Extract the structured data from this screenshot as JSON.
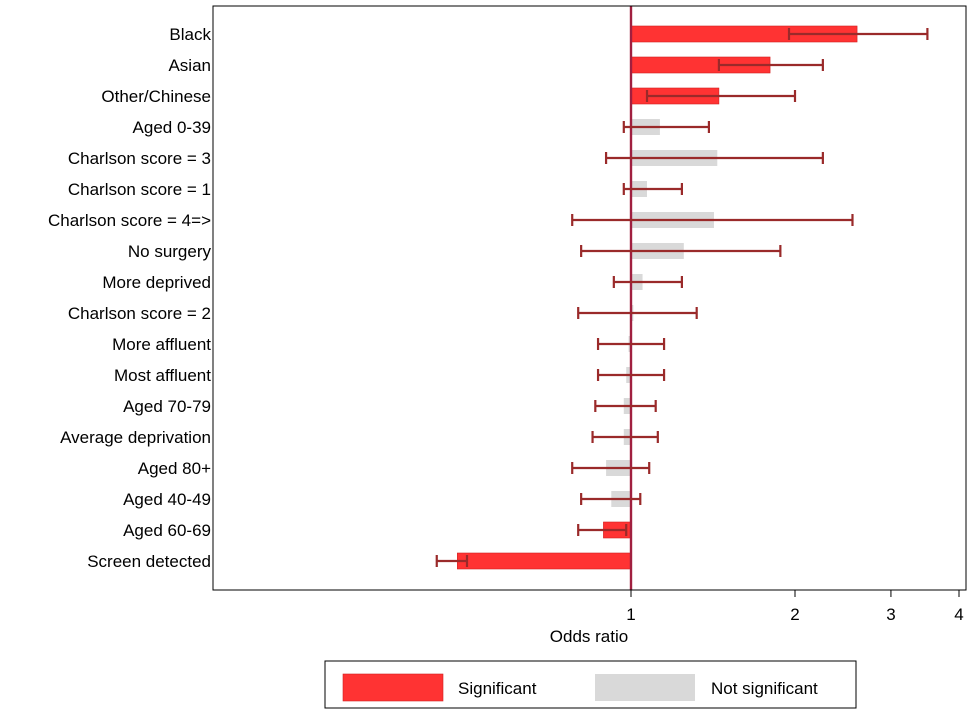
{
  "chart_data": {
    "type": "bar",
    "orientation": "horizontal",
    "xscale": "log",
    "reference_line": 1,
    "xlim": [
      0.44,
      4.2
    ],
    "xlabel": "Odds ratio",
    "xticks": [
      1,
      2,
      3,
      4
    ],
    "grid": false,
    "legend_position": "bottom",
    "colors": {
      "significant": "#ff3333",
      "not_significant": "#d9d9d9",
      "ci_line": "#9a2a2a",
      "ref_line": "#a01f3f"
    },
    "legend": [
      {
        "key": "significant",
        "label": "Significant"
      },
      {
        "key": "not_significant",
        "label": "Not significant"
      }
    ],
    "rows": [
      {
        "label": "Black",
        "or": 2.6,
        "lo": 1.95,
        "hi": 3.5,
        "significant": true
      },
      {
        "label": "Asian",
        "or": 1.8,
        "lo": 1.45,
        "hi": 2.25,
        "significant": true
      },
      {
        "label": "Other/Chinese",
        "or": 1.45,
        "lo": 1.07,
        "hi": 2.0,
        "significant": true
      },
      {
        "label": "Aged 0-39",
        "or": 1.13,
        "lo": 0.97,
        "hi": 1.39,
        "significant": false
      },
      {
        "label": "Charlson score = 3",
        "or": 1.44,
        "lo": 0.9,
        "hi": 2.25,
        "significant": false
      },
      {
        "label": "Charlson score = 1",
        "or": 1.07,
        "lo": 0.97,
        "hi": 1.24,
        "significant": false
      },
      {
        "label": "Charlson score = 4=>",
        "or": 1.42,
        "lo": 0.78,
        "hi": 2.55,
        "significant": false
      },
      {
        "label": "No surgery",
        "or": 1.25,
        "lo": 0.81,
        "hi": 1.88,
        "significant": false
      },
      {
        "label": "More deprived",
        "or": 1.05,
        "lo": 0.93,
        "hi": 1.24,
        "significant": false
      },
      {
        "label": "Charlson score = 2",
        "or": 1.01,
        "lo": 0.8,
        "hi": 1.32,
        "significant": false
      },
      {
        "label": "More affluent",
        "or": 0.99,
        "lo": 0.87,
        "hi": 1.15,
        "significant": false
      },
      {
        "label": "Most affluent",
        "or": 0.98,
        "lo": 0.87,
        "hi": 1.15,
        "significant": false
      },
      {
        "label": "Aged 70-79",
        "or": 0.97,
        "lo": 0.86,
        "hi": 1.11,
        "significant": false
      },
      {
        "label": "Average deprivation",
        "or": 0.97,
        "lo": 0.85,
        "hi": 1.12,
        "significant": false
      },
      {
        "label": "Aged 80+",
        "or": 0.9,
        "lo": 0.78,
        "hi": 1.08,
        "significant": false
      },
      {
        "label": "Aged 40-49",
        "or": 0.92,
        "lo": 0.81,
        "hi": 1.04,
        "significant": false
      },
      {
        "label": "Aged 60-69",
        "or": 0.89,
        "lo": 0.8,
        "hi": 0.98,
        "significant": true
      },
      {
        "label": "Screen detected",
        "or": 0.48,
        "lo": 0.44,
        "hi": 0.5,
        "significant": true
      }
    ]
  }
}
